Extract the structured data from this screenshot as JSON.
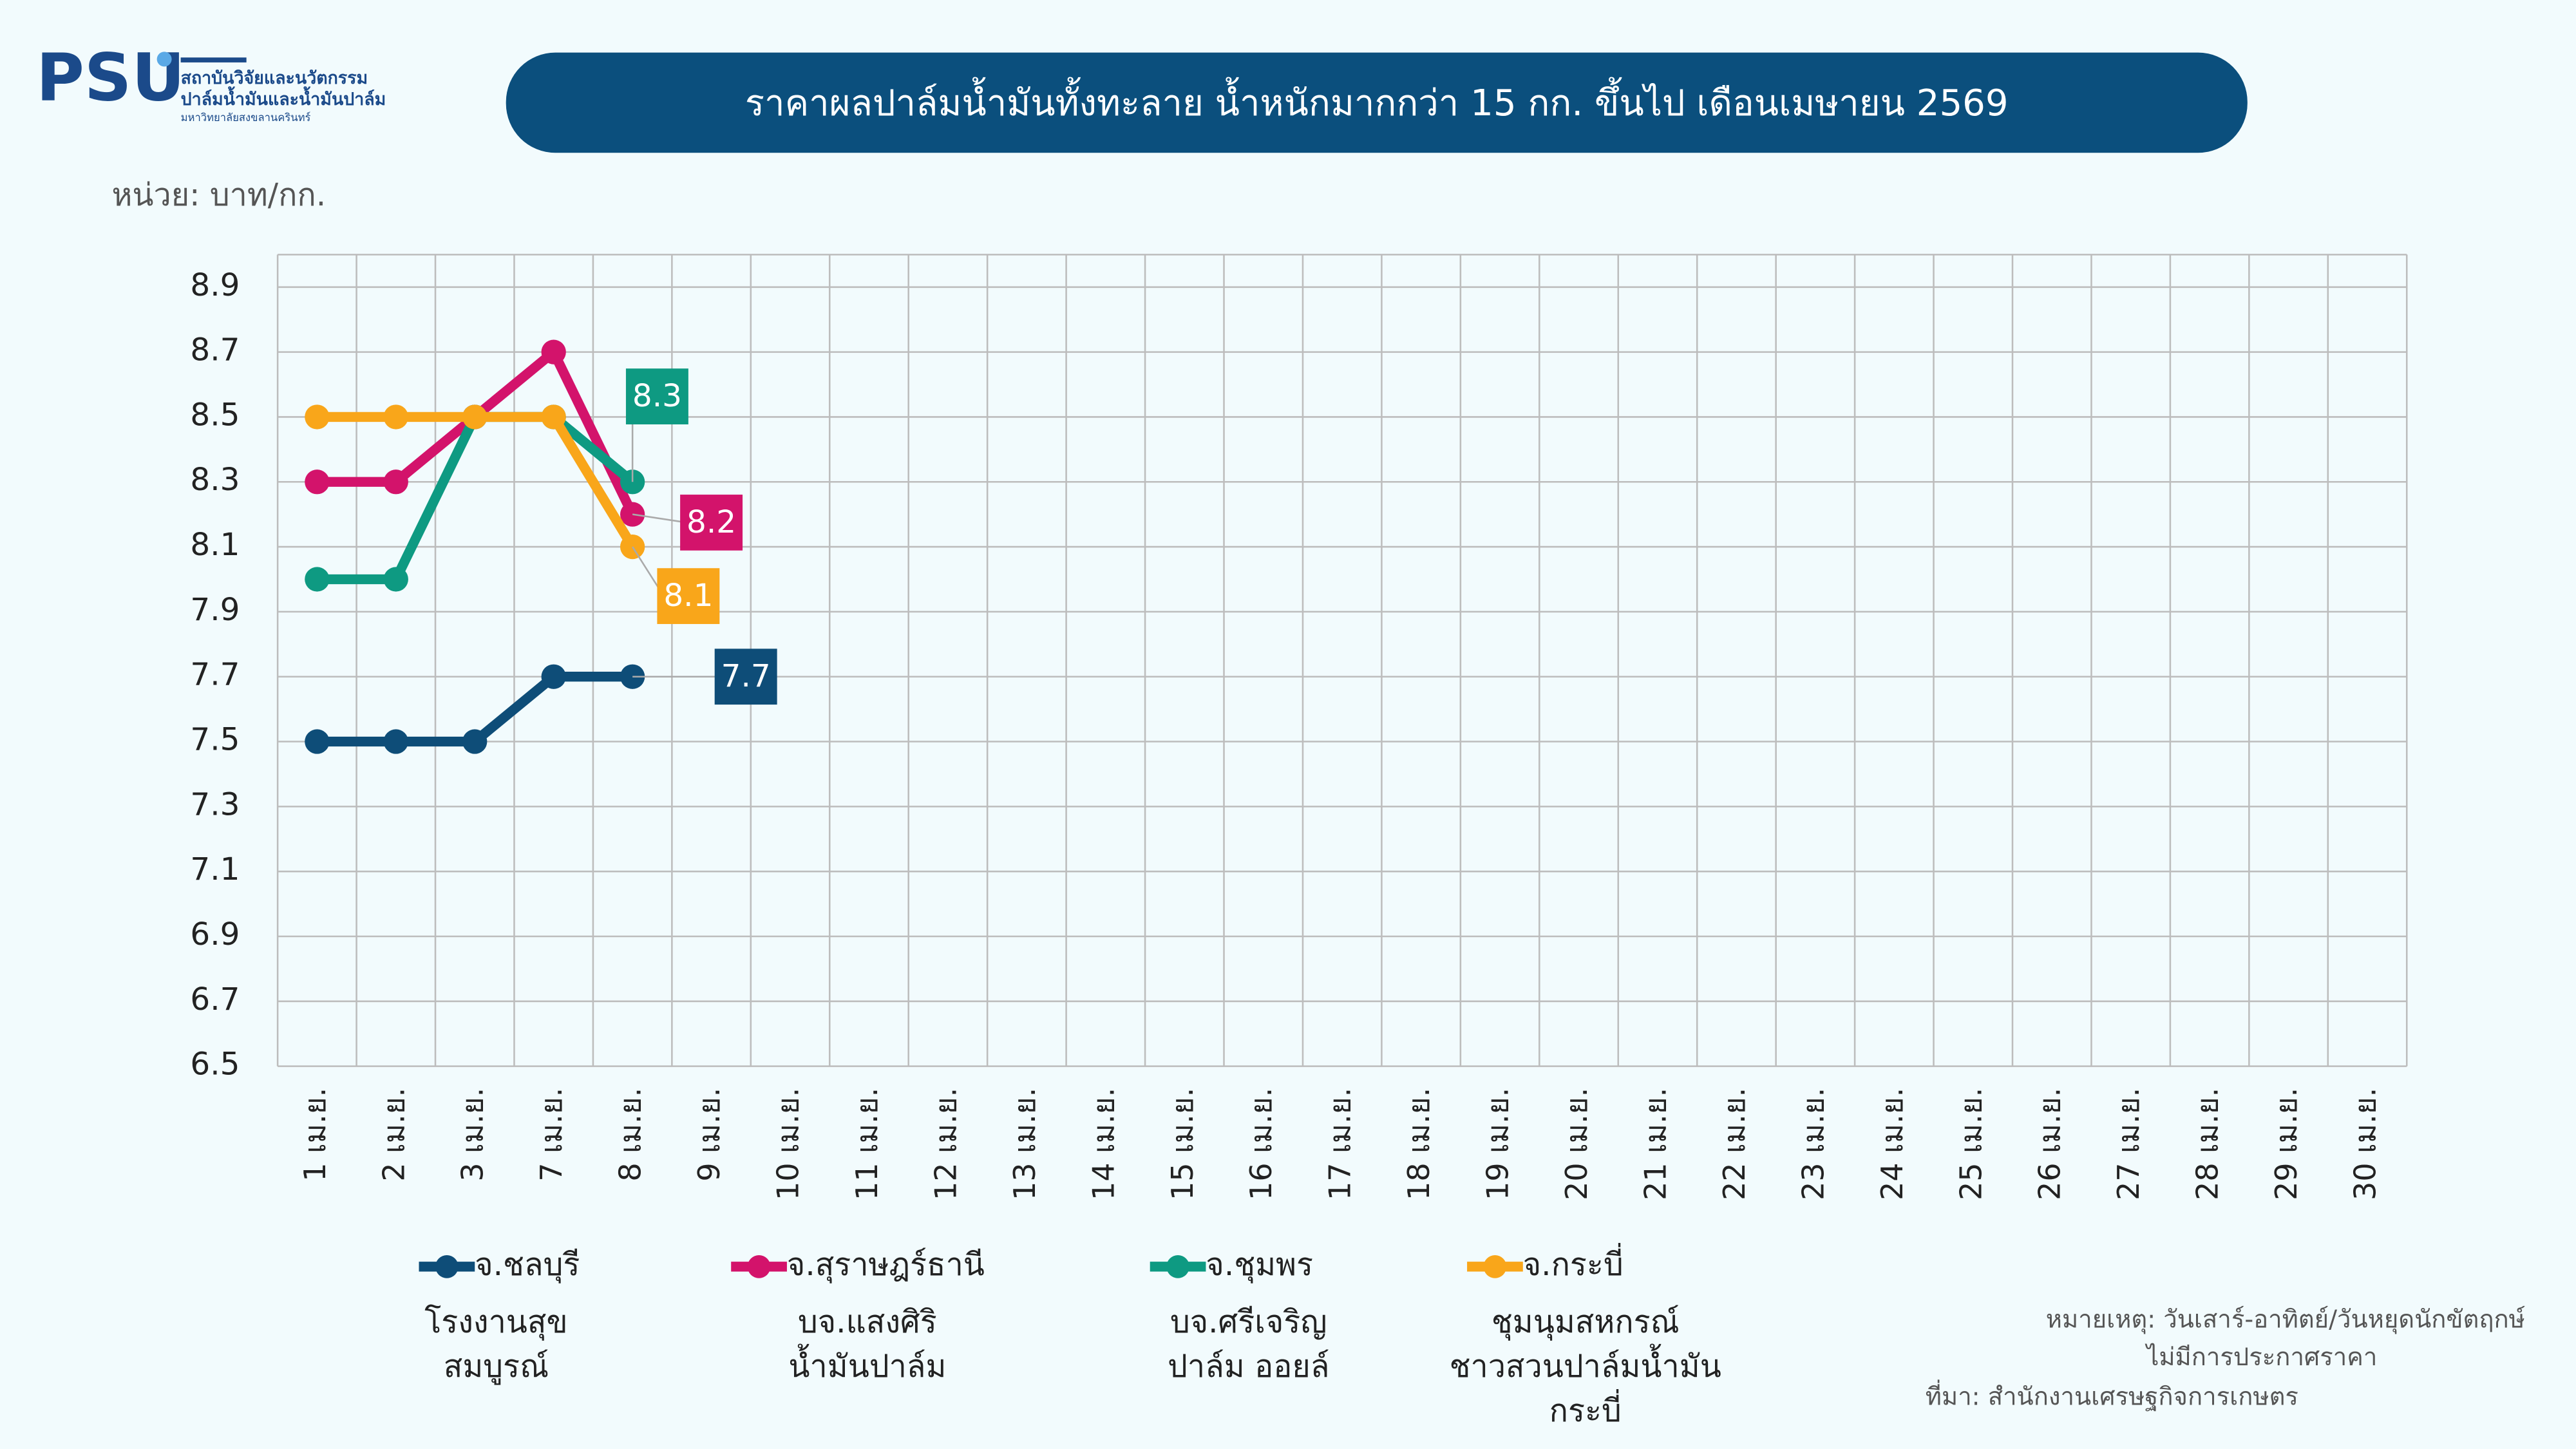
{
  "header": {
    "logo": "PSU",
    "org_lines": [
      "สถาบันวิจัยและนวัตกรรม",
      "ปาล์มน้ำมันและน้ำมันปาล์ม",
      "มหาวิทยาลัยสงขลานครินทร์"
    ]
  },
  "chart_data": {
    "type": "line",
    "title": "ราคาผลปาล์มน้ำมันทั้งทะลาย น้ำหนักมากกว่า 15 กก. ขึ้นไป เดือนเมษายน 2569",
    "y_label": "หน่วย: บาท/กก.",
    "categories": [
      "1 เม.ย.",
      "2 เม.ย.",
      "3 เม.ย.",
      "7 เม.ย.",
      "8 เม.ย.",
      "9 เม.ย.",
      "10 เม.ย.",
      "11 เม.ย.",
      "12 เม.ย.",
      "13 เม.ย.",
      "14 เม.ย.",
      "15 เม.ย.",
      "16 เม.ย.",
      "17 เม.ย.",
      "18 เม.ย.",
      "19 เม.ย.",
      "20 เม.ย.",
      "21 เม.ย.",
      "22 เม.ย.",
      "23 เม.ย.",
      "24 เม.ย.",
      "25 เม.ย.",
      "26 เม.ย.",
      "27 เม.ย.",
      "28 เม.ย.",
      "29 เม.ย.",
      "30 เม.ย."
    ],
    "series": [
      {
        "name": "จ.ชลบุรี",
        "color": "#0e4d78",
        "note": [
          "โรงงานสุข",
          "สมบูรณ์"
        ],
        "values": [
          7.5,
          7.5,
          7.5,
          7.7,
          7.7,
          null,
          null,
          null,
          null,
          null,
          null,
          null,
          null,
          null,
          null,
          null,
          null,
          null,
          null,
          null,
          null,
          null,
          null,
          null,
          null,
          null,
          null
        ]
      },
      {
        "name": "จ.สุราษฎร์ธานี",
        "color": "#d3136b",
        "note": [
          "บจ.แสงศิริ",
          "น้ำมันปาล์ม"
        ],
        "values": [
          8.3,
          8.3,
          8.5,
          8.7,
          8.2,
          null,
          null,
          null,
          null,
          null,
          null,
          null,
          null,
          null,
          null,
          null,
          null,
          null,
          null,
          null,
          null,
          null,
          null,
          null,
          null,
          null,
          null
        ]
      },
      {
        "name": "จ.ชุมพร",
        "color": "#0e9a82",
        "note": [
          "บจ.ศรีเจริญ",
          "ปาล์ม ออยล์"
        ],
        "values": [
          8.0,
          8.0,
          8.5,
          8.5,
          8.3,
          null,
          null,
          null,
          null,
          null,
          null,
          null,
          null,
          null,
          null,
          null,
          null,
          null,
          null,
          null,
          null,
          null,
          null,
          null,
          null,
          null,
          null
        ]
      },
      {
        "name": "จ.กระบี่",
        "color": "#f9a61a",
        "note": [
          "ชุมนุมสหกรณ์",
          "ชาวสวนปาล์มน้ำมัน",
          "กระบี่"
        ],
        "values": [
          8.5,
          8.5,
          8.5,
          8.5,
          8.1,
          null,
          null,
          null,
          null,
          null,
          null,
          null,
          null,
          null,
          null,
          null,
          null,
          null,
          null,
          null,
          null,
          null,
          null,
          null,
          null,
          null,
          null
        ]
      }
    ],
    "ylim": [
      6.5,
      9.0
    ],
    "yticks": [
      6.5,
      6.7,
      6.9,
      7.1,
      7.3,
      7.5,
      7.7,
      7.9,
      8.1,
      8.3,
      8.5,
      8.7,
      8.9
    ],
    "grid": true,
    "legend": "bottom",
    "notes": [
      "หมายเหตุ: วันเสาร์-อาทิตย์/วันหยุดนักขัตฤกษ์",
      "ไม่มีการประกาศราคา",
      "ที่มา: สำนักงานเศรษฐกิจการเกษตร"
    ]
  }
}
